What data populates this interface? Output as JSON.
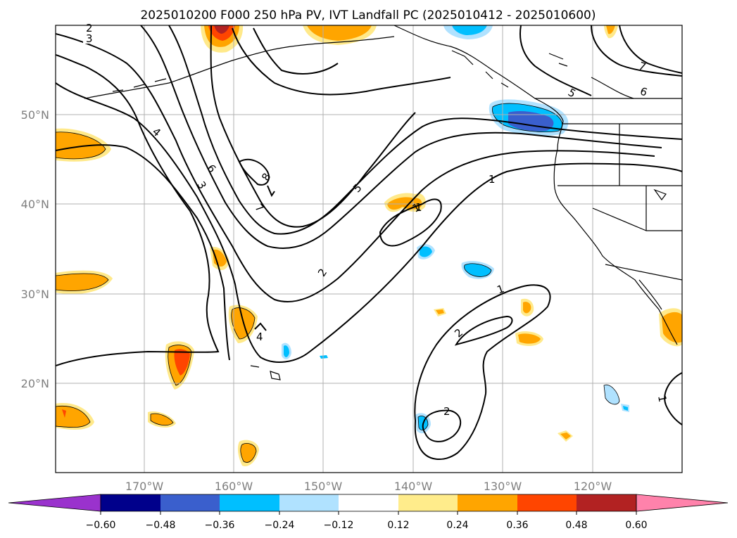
{
  "title": "2025010200 F000 250 hPa PV, IVT Landfall PC (2025010412 - 2025010600)",
  "map": {
    "lat_labels": [
      {
        "lat": 50,
        "text": "50°N"
      },
      {
        "lat": 40,
        "text": "40°N"
      },
      {
        "lat": 30,
        "text": "30°N"
      },
      {
        "lat": 20,
        "text": "20°N"
      }
    ],
    "lon_labels": [
      {
        "lon": -170,
        "text": "170°W"
      },
      {
        "lon": -160,
        "text": "160°W"
      },
      {
        "lon": -150,
        "text": "150°W"
      },
      {
        "lon": -140,
        "text": "140°W"
      },
      {
        "lon": -130,
        "text": "130°W"
      },
      {
        "lon": -120,
        "text": "120°W"
      }
    ],
    "extent": {
      "lon_min": -180,
      "lon_max": -110,
      "lat_min": 10,
      "lat_max": 60
    },
    "contour_labels": [
      "3",
      "2",
      "4",
      "6",
      "3",
      "8",
      "7",
      "5",
      "2",
      "1",
      "1",
      "2",
      "4",
      "2",
      "1",
      "5",
      "6",
      "7",
      "1",
      "1"
    ]
  },
  "colorbar": {
    "ticks": [
      "−0.60",
      "−0.48",
      "−0.36",
      "−0.24",
      "−0.12",
      "0.12",
      "0.24",
      "0.36",
      "0.48",
      "0.60"
    ],
    "colors": [
      "#9a32cd",
      "#00008b",
      "#3a5fcd",
      "#00bfff",
      "#b0e2ff",
      "#ffffff",
      "#ffec8b",
      "#ffa500",
      "#ff4500",
      "#b22222",
      "#ff82ab"
    ]
  }
}
